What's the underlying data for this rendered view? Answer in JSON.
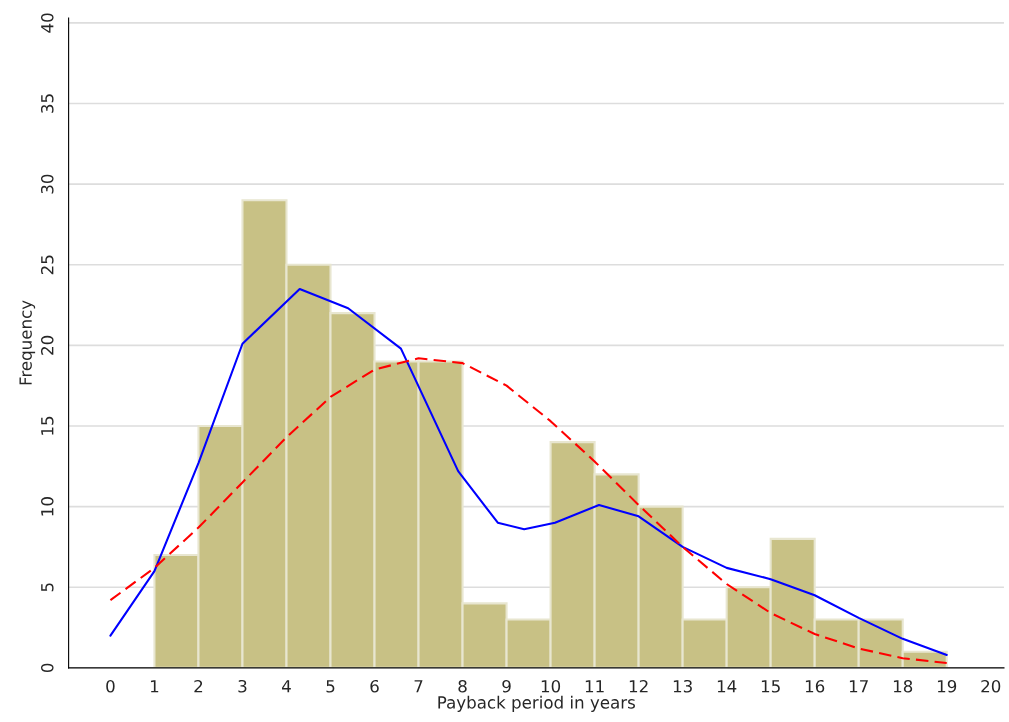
{
  "chart_data": {
    "type": "histogram",
    "xlabel": "Payback period in years",
    "ylabel": "Frequency",
    "bins": [
      1,
      2,
      3,
      4,
      5,
      6,
      7,
      8,
      9,
      10,
      11,
      12,
      13,
      14,
      15,
      16,
      17,
      18,
      19
    ],
    "values": [
      7,
      15,
      29,
      25,
      22,
      19,
      19,
      4,
      3,
      14,
      12,
      10,
      3,
      5,
      8,
      3,
      3,
      1
    ],
    "color": "#c8c185",
    "series": [
      {
        "type": "line",
        "color": "#0000ff",
        "line_style": "solid",
        "x": [
          0,
          1,
          2,
          3,
          4.3,
          5.4,
          6.6,
          7.9,
          8.8,
          9.4,
          10.1,
          11.1,
          12,
          13,
          14,
          15,
          16,
          17,
          18,
          19
        ],
        "values": [
          2,
          6,
          12.7,
          20.1,
          23.5,
          22.3,
          19.8,
          12.2,
          9,
          8.6,
          9,
          10.1,
          9.4,
          7.5,
          6.2,
          5.5,
          4.5,
          3.1,
          1.8,
          0.8
        ]
      },
      {
        "type": "line",
        "color": "#ff0000",
        "line_style": "dashed",
        "x": [
          0,
          1,
          2,
          3,
          4,
          5,
          6,
          7,
          8,
          9,
          10,
          11,
          12,
          13,
          14,
          15,
          16,
          17,
          18,
          19
        ],
        "values": [
          4.2,
          6.2,
          8.7,
          11.5,
          14.3,
          16.8,
          18.5,
          19.2,
          18.9,
          17.5,
          15.3,
          12.8,
          10.1,
          7.5,
          5.2,
          3.4,
          2.1,
          1.2,
          0.6,
          0.3
        ]
      }
    ],
    "xlim": [
      -0.95,
      20.3
    ],
    "xticks": [
      0,
      1,
      2,
      3,
      4,
      5,
      6,
      7,
      8,
      9,
      10,
      11,
      12,
      13,
      14,
      15,
      16,
      17,
      18,
      19,
      20
    ],
    "ylim": [
      0,
      40.3
    ],
    "yticks": [
      0,
      5,
      10,
      15,
      20,
      25,
      30,
      35,
      40
    ],
    "grid": "y",
    "legend": false
  }
}
